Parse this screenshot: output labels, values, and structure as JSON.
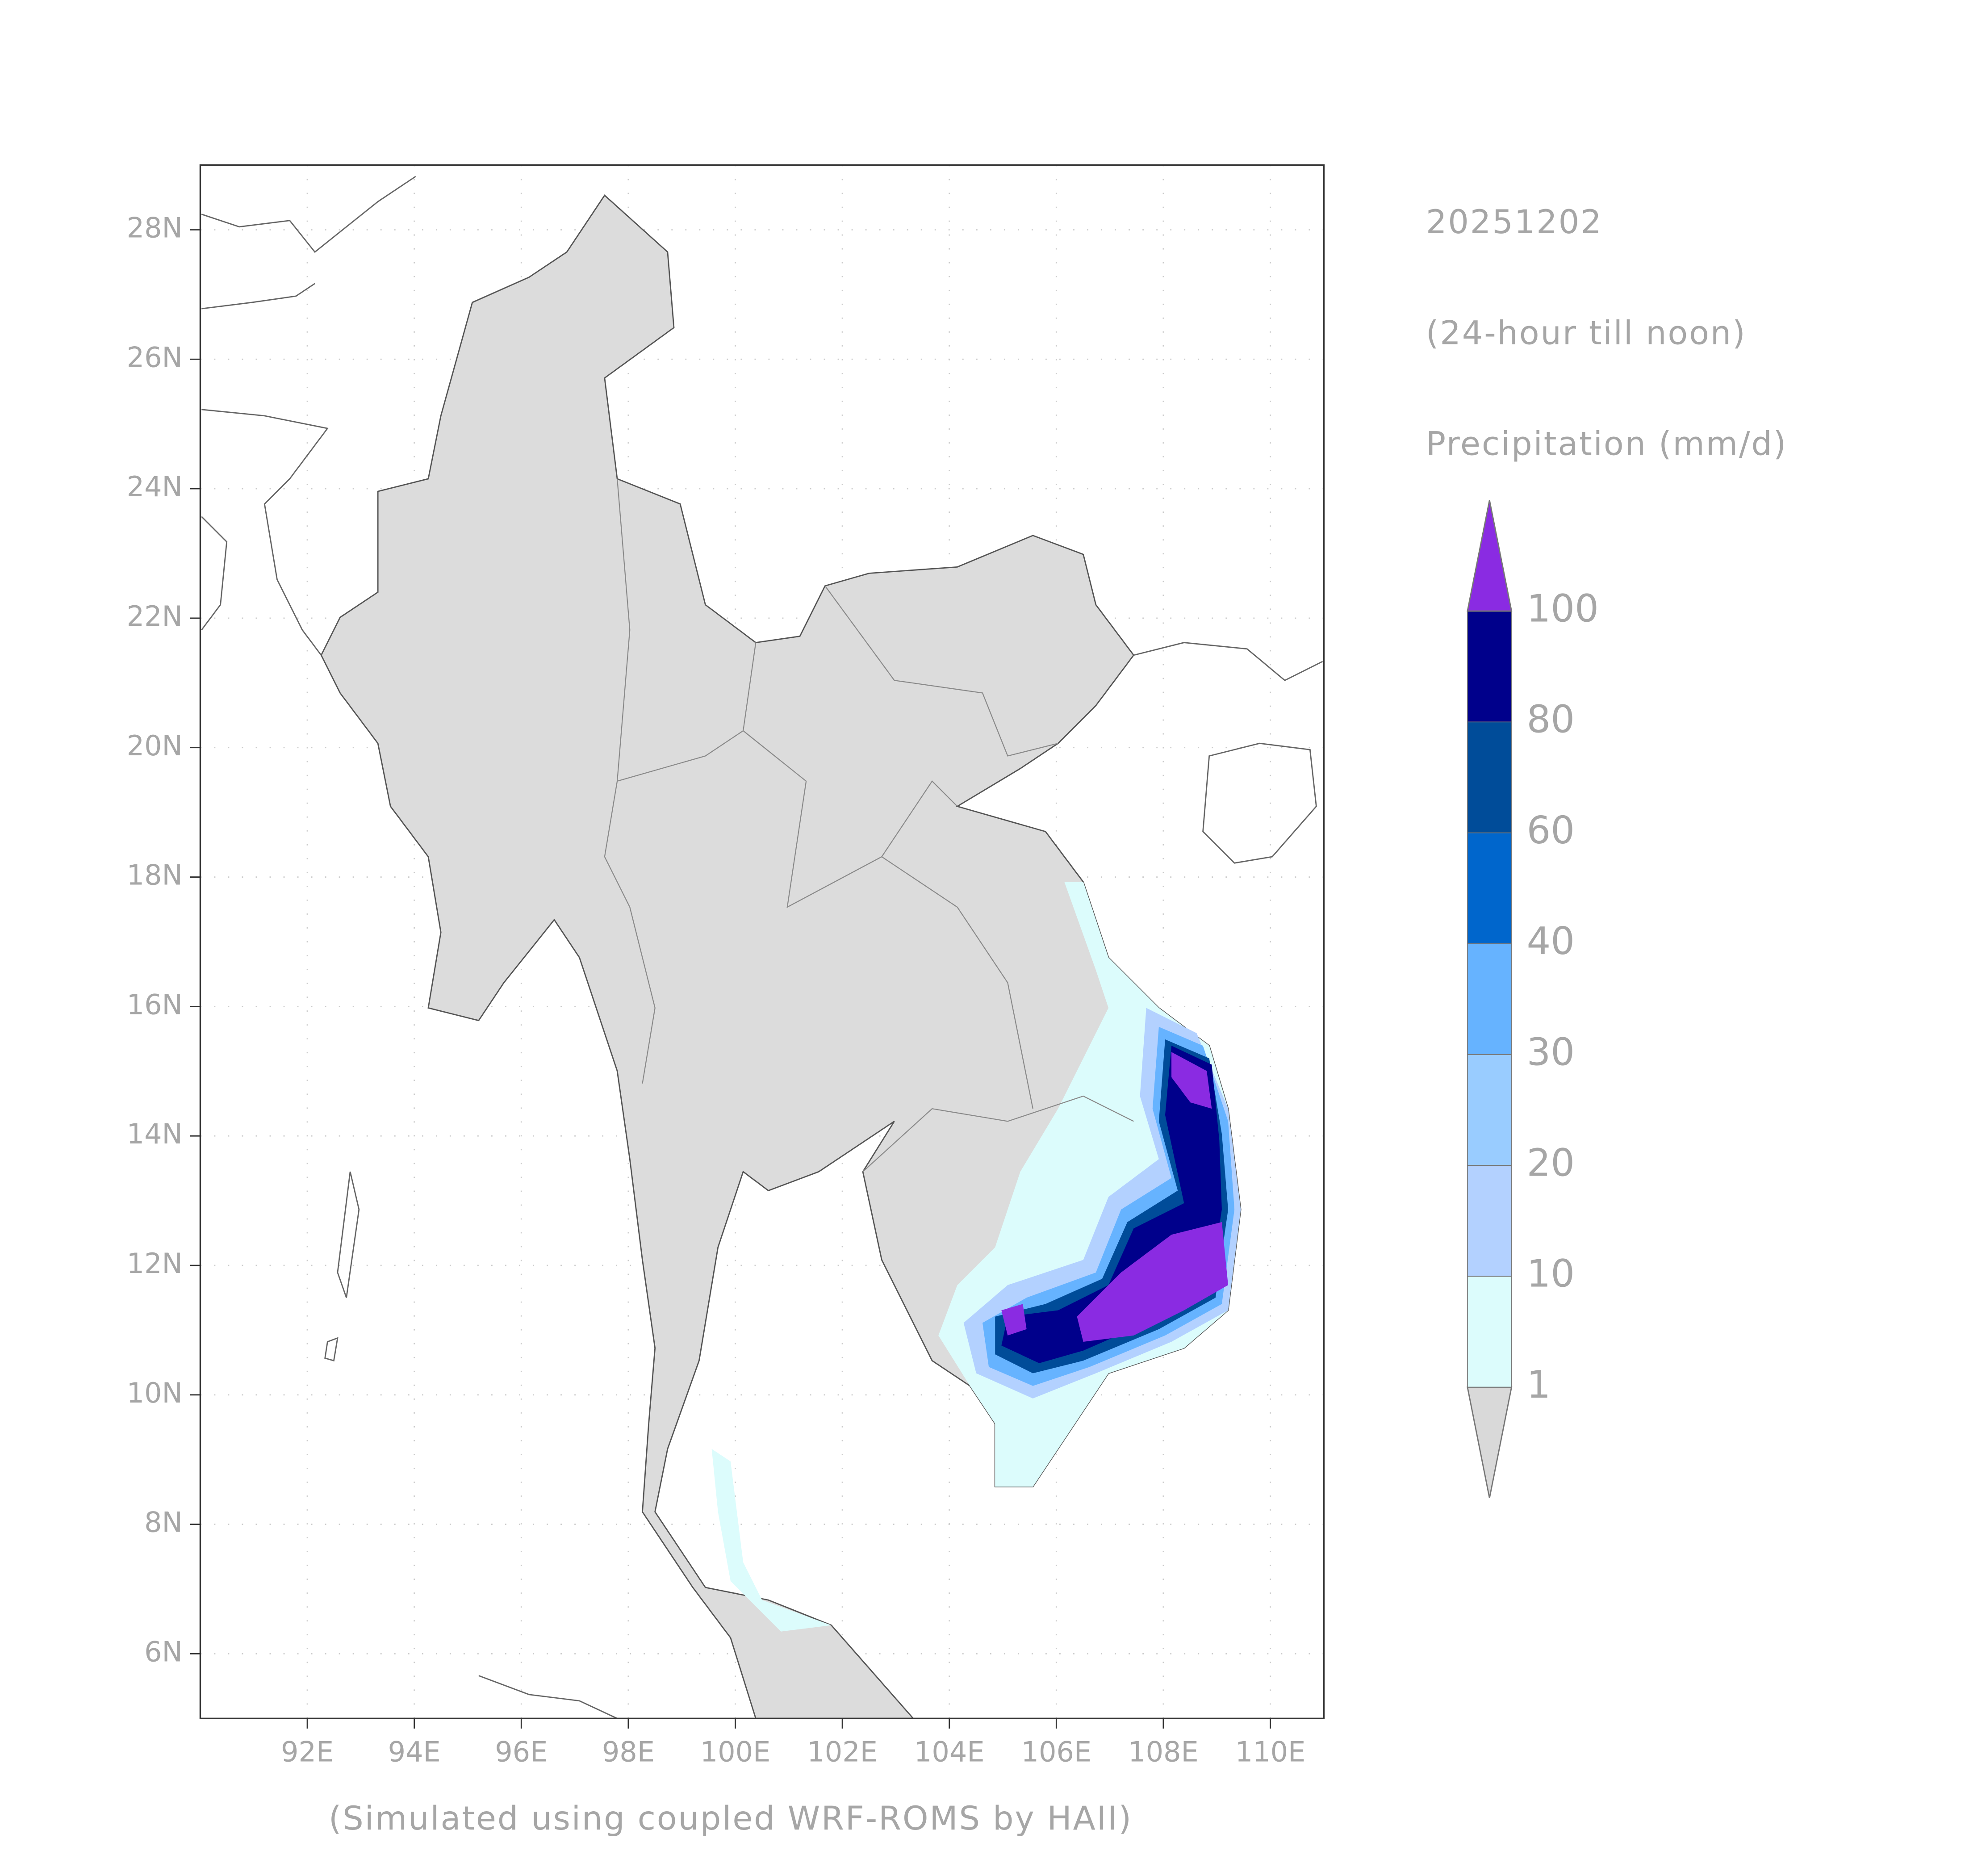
{
  "header": {
    "date": "20251202",
    "period": "(24-hour till noon)",
    "variable": "Precipitation (mm/d)"
  },
  "footer": "(Simulated using coupled WRF-ROMS by HAII)",
  "map": {
    "lon_range": [
      90,
      111
    ],
    "lat_range": [
      5,
      29
    ],
    "grid": true,
    "lon_ticks": [
      {
        "value": 92,
        "label": "92E"
      },
      {
        "value": 94,
        "label": "94E"
      },
      {
        "value": 96,
        "label": "96E"
      },
      {
        "value": 98,
        "label": "98E"
      },
      {
        "value": 100,
        "label": "100E"
      },
      {
        "value": 102,
        "label": "102E"
      },
      {
        "value": 104,
        "label": "104E"
      },
      {
        "value": 106,
        "label": "106E"
      },
      {
        "value": 108,
        "label": "108E"
      },
      {
        "value": 110,
        "label": "110E"
      }
    ],
    "lat_ticks": [
      {
        "value": 6,
        "label": "6N"
      },
      {
        "value": 8,
        "label": "8N"
      },
      {
        "value": 10,
        "label": "10N"
      },
      {
        "value": 12,
        "label": "12N"
      },
      {
        "value": 14,
        "label": "14N"
      },
      {
        "value": 16,
        "label": "16N"
      },
      {
        "value": 18,
        "label": "18N"
      },
      {
        "value": 20,
        "label": "20N"
      },
      {
        "value": 22,
        "label": "22N"
      },
      {
        "value": 24,
        "label": "24N"
      },
      {
        "value": 26,
        "label": "26N"
      },
      {
        "value": 28,
        "label": "28N"
      }
    ]
  },
  "colorbar": {
    "levels": [
      1,
      10,
      20,
      30,
      40,
      60,
      80,
      100
    ],
    "colors": [
      "#d9d9d9",
      "#dcfcfc",
      "#b3d1ff",
      "#99ccff",
      "#66b3ff",
      "#0066cc",
      "#004c99",
      "#00008b",
      "#8a2be2"
    ]
  }
}
